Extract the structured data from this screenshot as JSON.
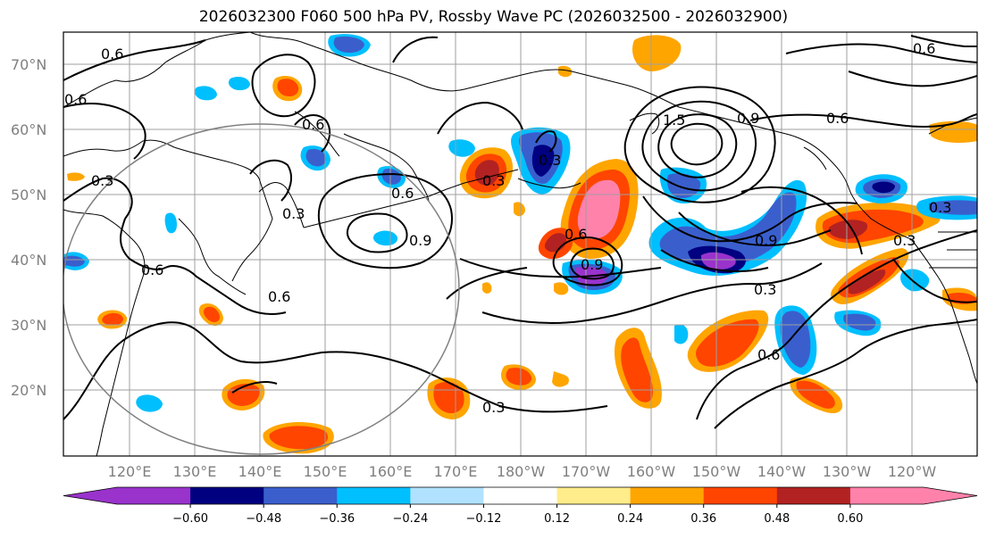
{
  "title": "2026032300 F060 500 hPa PV, Rossby Wave PC (2026032500 - 2026032900)",
  "lat_labels": [
    "70°N",
    "60°N",
    "50°N",
    "40°N",
    "30°N",
    "20°N"
  ],
  "lon_labels": [
    "120°E",
    "130°E",
    "140°E",
    "150°E",
    "160°E",
    "170°E",
    "180°W",
    "170°W",
    "160°W",
    "150°W",
    "140°W",
    "130°W",
    "120°W"
  ],
  "colorbar": {
    "colors": [
      "#9933cc",
      "#000080",
      "#3a5fcd",
      "#00bfff",
      "#b0e2ff",
      "#ffffff",
      "#ffec8b",
      "#ffa500",
      "#ff4500",
      "#b22222",
      "#ff82ab"
    ],
    "under_color": "#9933cc",
    "over_color": "#ff82ab",
    "ticks": [
      "−0.60",
      "−0.48",
      "−0.36",
      "−0.24",
      "−0.12",
      "0.12",
      "0.24",
      "0.36",
      "0.48",
      "0.60"
    ]
  },
  "contour_labels": [
    "0.6",
    "0.6",
    "0.6",
    "0.3",
    "0.3",
    "0.6",
    "0.9",
    "0.6",
    "0.3",
    "0.6",
    "0.9",
    "0.3",
    "0.6",
    "1.5",
    "0.9",
    "0.6",
    "0.9",
    "0.3",
    "0.6",
    "0.3",
    "0.6",
    "0.3",
    "0.3"
  ],
  "colors": {
    "background": "#ffffff",
    "grid": "#999999",
    "coast": "#000000",
    "circle": "#808080"
  }
}
